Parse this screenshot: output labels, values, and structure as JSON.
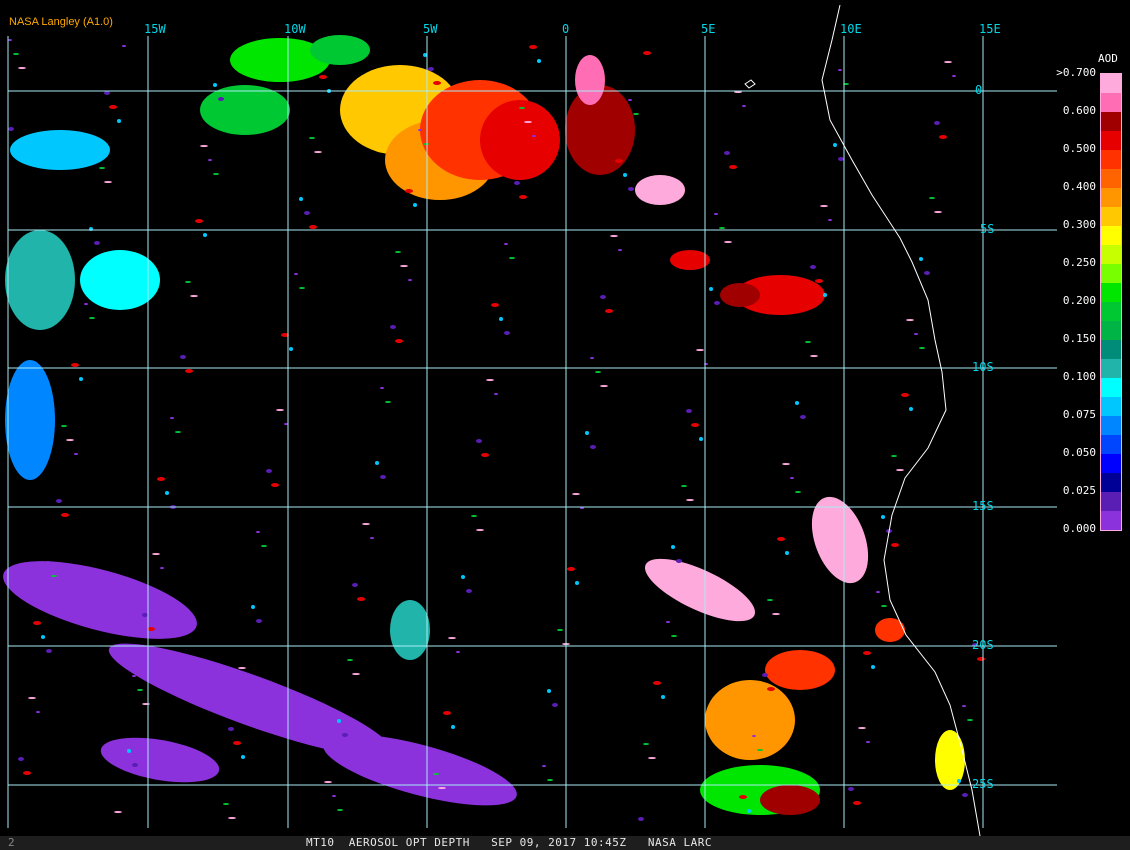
{
  "header": {
    "title": "NASA Langley (A1.0)"
  },
  "map": {
    "longitude_labels": [
      "15W",
      "10W",
      "5W",
      "0",
      "5E",
      "10E",
      "15E"
    ],
    "latitude_labels": [
      "0",
      "5S",
      "10S",
      "15S",
      "20S",
      "25S"
    ],
    "grid_color": "#a8ecf4",
    "label_color": "#00d8e8",
    "coastline_color": "#ffffff"
  },
  "legend": {
    "title": "AOD",
    "labels": [
      ">0.700",
      "0.600",
      "0.500",
      "0.400",
      "0.300",
      "0.250",
      "0.200",
      "0.150",
      "0.100",
      "0.075",
      "0.050",
      "0.025",
      "0.000"
    ],
    "colors": [
      "#ffaadd",
      "#ff6eb4",
      "#a00000",
      "#e60000",
      "#ff3200",
      "#ff6400",
      "#ff9600",
      "#ffc800",
      "#ffff00",
      "#c8ff00",
      "#78ff00",
      "#00e600",
      "#00c832",
      "#00b446",
      "#008c78",
      "#20b4aa",
      "#00ffff",
      "#00c8ff",
      "#0087ff",
      "#0046ff",
      "#0000ff",
      "#000096",
      "#5a1eb4",
      "#8c32dc"
    ]
  },
  "footer": {
    "frame_number": "2",
    "caption": "MT10  AEROSOL OPT DEPTH   SEP 09, 2017 10:45Z   NASA LARC"
  }
}
